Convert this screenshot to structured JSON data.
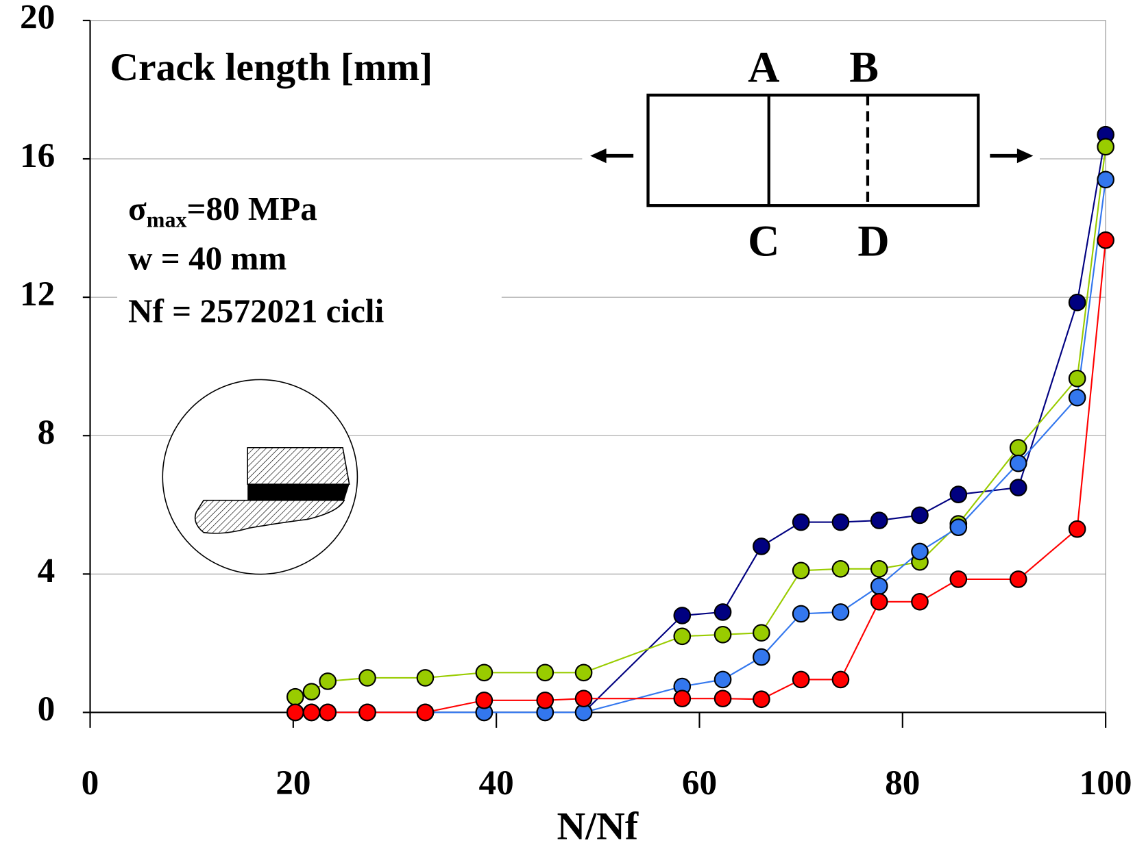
{
  "chart_data": {
    "type": "line",
    "title": "Crack length [mm]",
    "x_label": "N/Nf",
    "stress": {
      "symbol": "σ",
      "subscript": "max",
      "text": "=80 MPa"
    },
    "width_note": "w = 40 mm",
    "cycles_note": "Nf = 2572021 cicli",
    "diagram_labels": [
      {
        "text": "A",
        "color": "#3333bb"
      },
      {
        "text": "B",
        "color": "#66ee33"
      },
      {
        "text": "C",
        "color": "#000000"
      },
      {
        "text": "D",
        "color": "#ff0000"
      }
    ],
    "x": [
      20.2,
      21.8,
      23.4,
      27.3,
      33.0,
      38.8,
      44.8,
      48.6,
      58.3,
      62.3,
      66.1,
      70.0,
      73.9,
      77.7,
      81.7,
      85.5,
      91.4,
      97.2,
      100
    ],
    "series": [
      {
        "color": "#000080",
        "values": [
          0,
          0,
          0,
          0,
          0,
          0,
          0,
          0,
          2.8,
          2.9,
          4.8,
          5.5,
          5.5,
          5.55,
          5.7,
          6.3,
          6.5,
          11.85,
          16.7
        ]
      },
      {
        "color": "#99cc00",
        "values": [
          0.45,
          0.6,
          0.9,
          1.0,
          1.0,
          1.15,
          1.15,
          1.15,
          2.2,
          2.25,
          2.3,
          4.1,
          4.15,
          4.15,
          4.35,
          5.45,
          7.65,
          9.65,
          16.35
        ]
      },
      {
        "color": "#3377ee",
        "values": [
          0,
          0,
          0,
          0,
          0,
          0,
          0,
          0,
          0.75,
          0.95,
          1.6,
          2.85,
          2.9,
          3.65,
          4.65,
          5.35,
          7.2,
          9.1,
          15.4
        ]
      },
      {
        "color": "#ff0000",
        "values": [
          0,
          0,
          0,
          0,
          0,
          0.35,
          0.35,
          0.4,
          0.4,
          0.4,
          0.38,
          0.95,
          0.95,
          3.2,
          3.2,
          3.85,
          3.85,
          5.3,
          13.65
        ]
      }
    ],
    "xlim": [
      0,
      100
    ],
    "xticks": [
      0,
      20,
      40,
      60,
      80,
      100
    ],
    "ylim": [
      0,
      20
    ],
    "yticks": [
      0,
      4,
      8,
      12,
      16,
      20
    ],
    "grid": true
  }
}
